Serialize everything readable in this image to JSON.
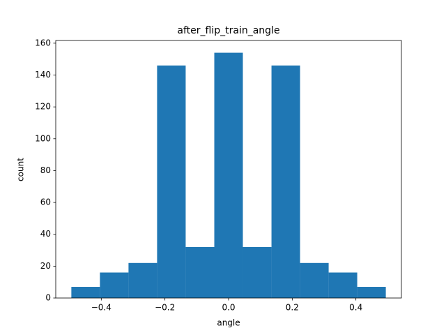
{
  "chart_data": {
    "type": "histogram",
    "title": "after_flip_train_angle",
    "x_label": "angle",
    "y_label": "count",
    "bins": [
      -0.494,
      -0.4042,
      -0.3144,
      -0.2246,
      -0.1348,
      -0.0449,
      0.0449,
      0.1348,
      0.2246,
      0.3144,
      0.4042,
      0.494
    ],
    "values": [
      7,
      16,
      22,
      146,
      32,
      154,
      32,
      146,
      22,
      16,
      7
    ],
    "color": "#1f77b4",
    "xlim": [
      -0.543,
      0.543
    ],
    "xticks": [
      {
        "value": -0.4,
        "label": "−0.4"
      },
      {
        "value": -0.2,
        "label": "−0.2"
      },
      {
        "value": 0,
        "label": "0.0"
      },
      {
        "value": 0.2,
        "label": "0.2"
      },
      {
        "value": 0.4,
        "label": "0.4"
      }
    ],
    "ylim": [
      0,
      161.7
    ],
    "yticks": [
      0,
      20,
      40,
      60,
      80,
      100,
      120,
      140,
      160
    ]
  }
}
